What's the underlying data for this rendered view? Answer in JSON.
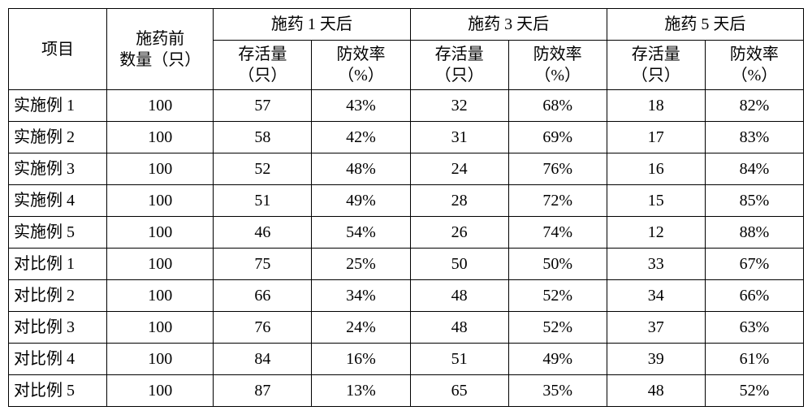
{
  "header": {
    "project": "项目",
    "pre_count": "施药前\n数量（只）",
    "groups": [
      {
        "title": "施药 1 天后",
        "survival": "存活量\n（只）",
        "rate": "防效率\n（%）"
      },
      {
        "title": "施药 3 天后",
        "survival": "存活量\n（只）",
        "rate": "防效率\n（%）"
      },
      {
        "title": "施药 5 天后",
        "survival": "存活量\n（只）",
        "rate": "防效率\n（%）"
      }
    ]
  },
  "rows": [
    {
      "label": "实施例 1",
      "pre": "100",
      "d1s": "57",
      "d1r": "43%",
      "d3s": "32",
      "d3r": "68%",
      "d5s": "18",
      "d5r": "82%"
    },
    {
      "label": "实施例 2",
      "pre": "100",
      "d1s": "58",
      "d1r": "42%",
      "d3s": "31",
      "d3r": "69%",
      "d5s": "17",
      "d5r": "83%"
    },
    {
      "label": "实施例 3",
      "pre": "100",
      "d1s": "52",
      "d1r": "48%",
      "d3s": "24",
      "d3r": "76%",
      "d5s": "16",
      "d5r": "84%"
    },
    {
      "label": "实施例 4",
      "pre": "100",
      "d1s": "51",
      "d1r": "49%",
      "d3s": "28",
      "d3r": "72%",
      "d5s": "15",
      "d5r": "85%"
    },
    {
      "label": "实施例 5",
      "pre": "100",
      "d1s": "46",
      "d1r": "54%",
      "d3s": "26",
      "d3r": "74%",
      "d5s": "12",
      "d5r": "88%"
    },
    {
      "label": "对比例 1",
      "pre": "100",
      "d1s": "75",
      "d1r": "25%",
      "d3s": "50",
      "d3r": "50%",
      "d5s": "33",
      "d5r": "67%"
    },
    {
      "label": "对比例 2",
      "pre": "100",
      "d1s": "66",
      "d1r": "34%",
      "d3s": "48",
      "d3r": "52%",
      "d5s": "34",
      "d5r": "66%"
    },
    {
      "label": "对比例 3",
      "pre": "100",
      "d1s": "76",
      "d1r": "24%",
      "d3s": "48",
      "d3r": "52%",
      "d5s": "37",
      "d5r": "63%"
    },
    {
      "label": "对比例 4",
      "pre": "100",
      "d1s": "84",
      "d1r": "16%",
      "d3s": "51",
      "d3r": "49%",
      "d5s": "39",
      "d5r": "61%"
    },
    {
      "label": "对比例 5",
      "pre": "100",
      "d1s": "87",
      "d1r": "13%",
      "d3s": "65",
      "d3r": "35%",
      "d5s": "48",
      "d5r": "52%"
    }
  ],
  "style": {
    "font_family": "SimSun",
    "font_size_pt": 15,
    "border_color": "#000000",
    "background": "#ffffff"
  }
}
